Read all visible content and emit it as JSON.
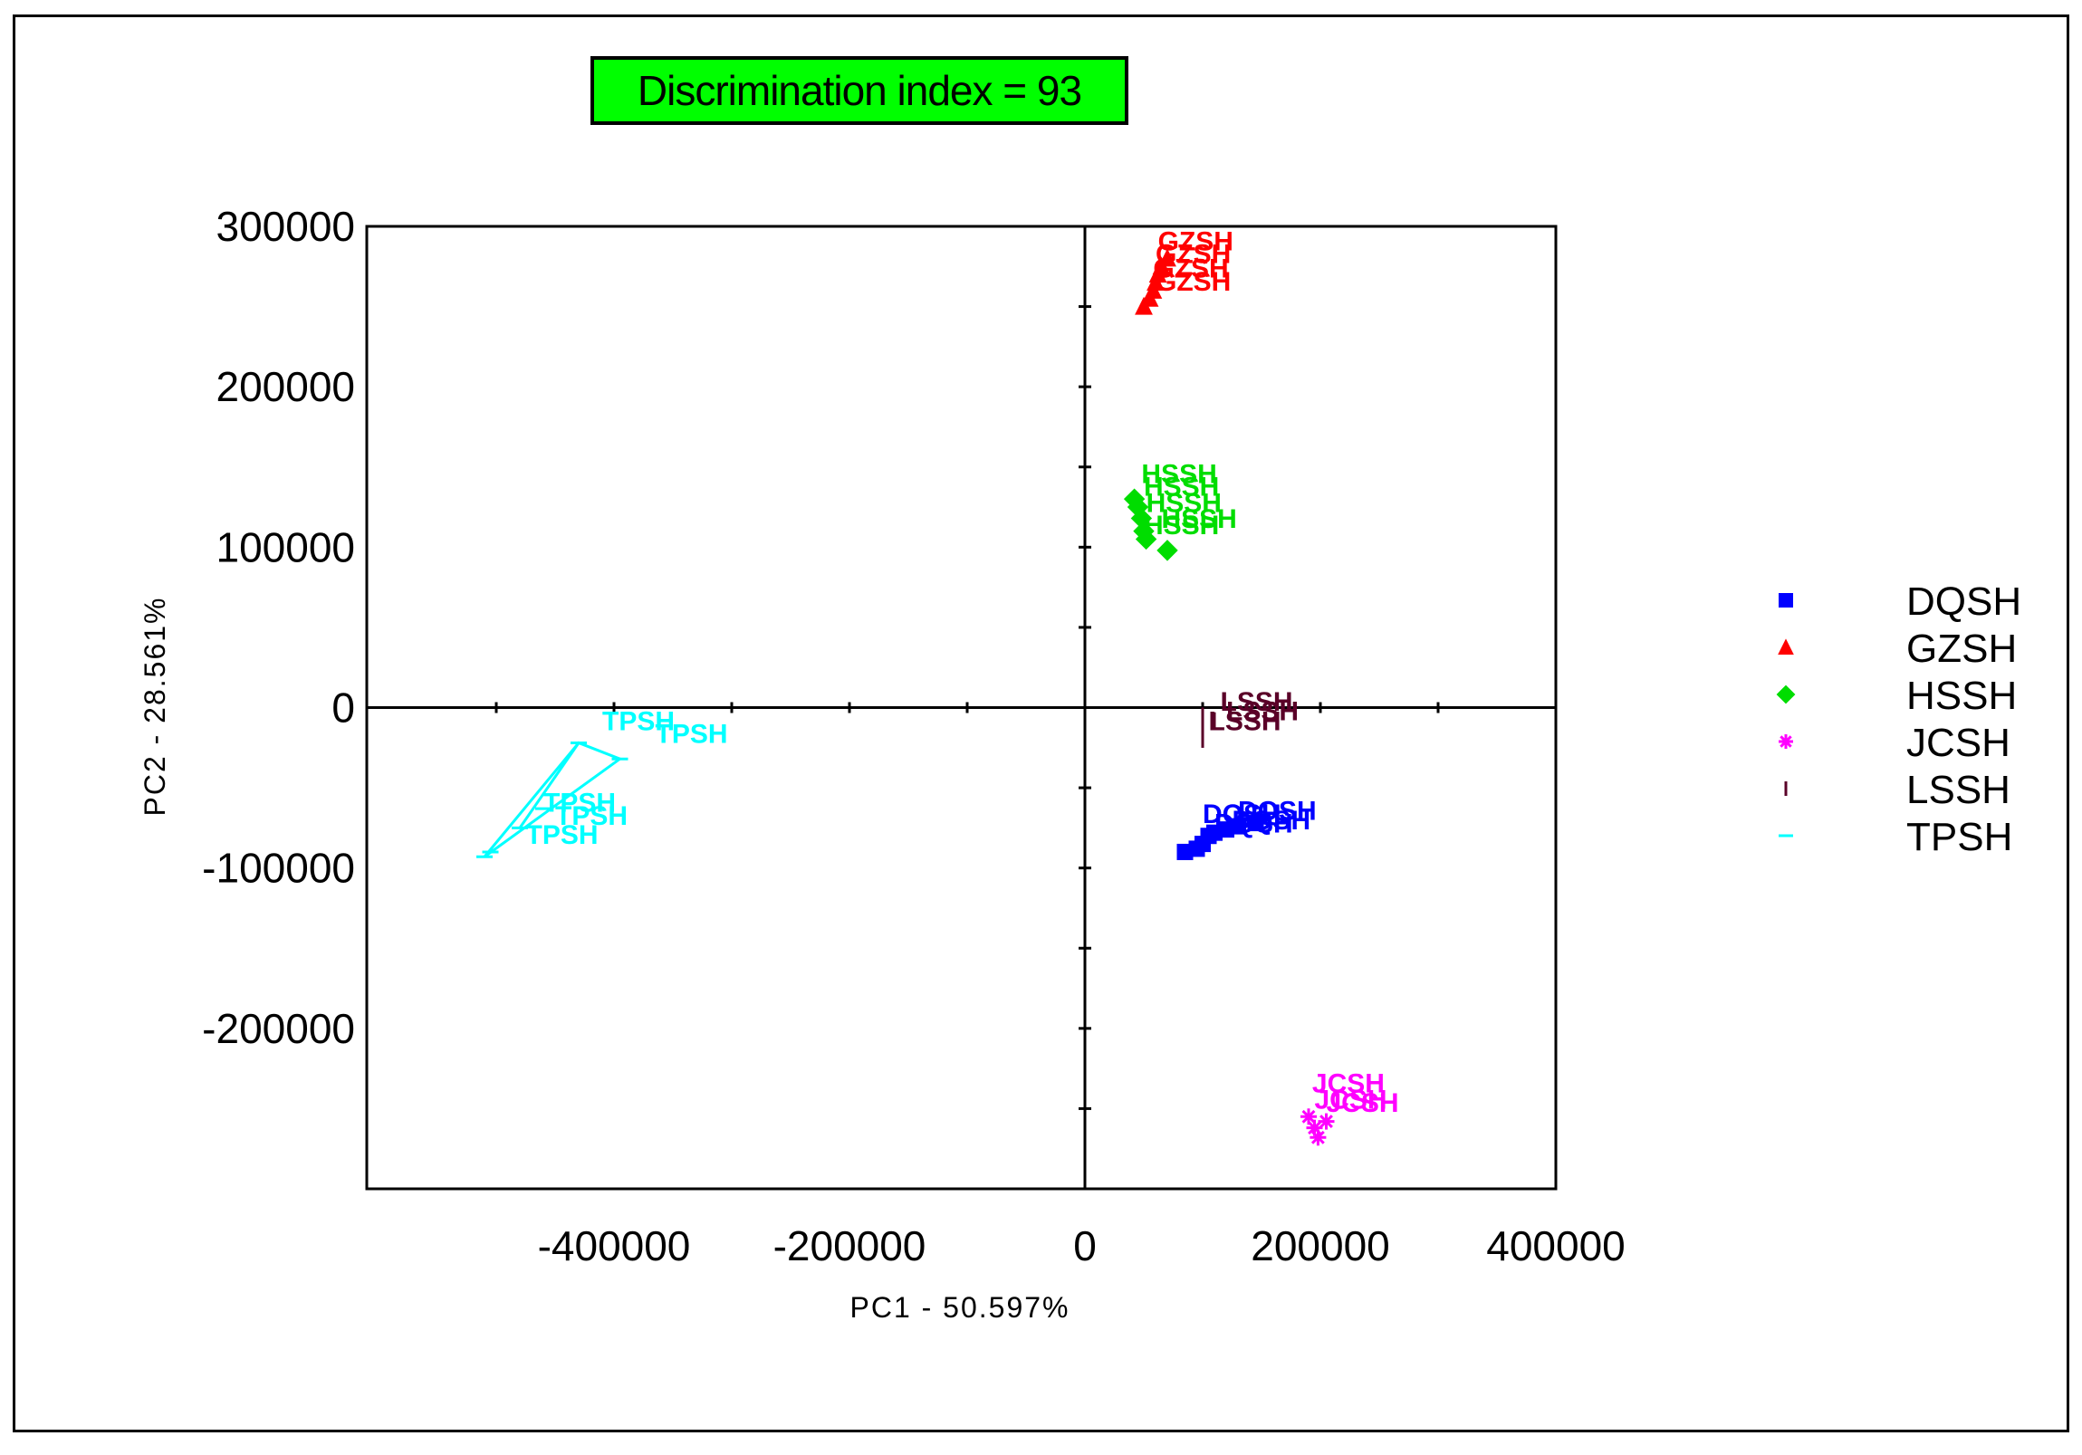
{
  "badge": {
    "text": "Discrimination index = 93",
    "color": "#00ff00"
  },
  "chart_data": {
    "type": "scatter",
    "xlabel": "PC1 - 50.597%",
    "ylabel": "PC2 - 28.561%",
    "xlim": [
      -610000,
      400000
    ],
    "ylim": [
      -300000,
      300000
    ],
    "xticks": [
      -400000,
      -200000,
      0,
      200000,
      400000
    ],
    "xtick_labels": [
      "-400000",
      "-200000",
      "0",
      "200000",
      "400000"
    ],
    "yticks": [
      300000,
      200000,
      100000,
      0,
      -100000,
      -200000
    ],
    "ytick_labels": [
      "300000",
      "200000",
      "100000",
      "0",
      "-100000",
      "-200000"
    ],
    "legend_position": "right",
    "series": [
      {
        "name": "DQSH",
        "color": "#0000ff",
        "marker": "square",
        "label": "DQSH",
        "points": [
          [
            85000,
            -90000
          ],
          [
            95000,
            -88000
          ],
          [
            100000,
            -85000
          ],
          [
            105000,
            -80000
          ],
          [
            110000,
            -78000
          ],
          [
            120000,
            -76000
          ],
          [
            130000,
            -74000
          ],
          [
            145000,
            -72000
          ]
        ],
        "text_points": [
          [
            100000,
            -72000
          ],
          [
            110000,
            -78000
          ],
          [
            125000,
            -76000
          ],
          [
            130000,
            -70000
          ]
        ]
      },
      {
        "name": "GZSH",
        "color": "#ff0000",
        "marker": "triangle",
        "label": "GZSH",
        "points": [
          [
            50000,
            250000
          ],
          [
            55000,
            255000
          ],
          [
            58000,
            260000
          ],
          [
            60000,
            265000
          ],
          [
            62000,
            270000
          ],
          [
            65000,
            275000
          ],
          [
            70000,
            280000
          ]
        ],
        "text_points": [
          [
            62000,
            285000
          ],
          [
            60000,
            277000
          ],
          [
            58000,
            268000
          ],
          [
            60000,
            260000
          ]
        ]
      },
      {
        "name": "HSSH",
        "color": "#00dd00",
        "marker": "diamond",
        "label": "HSSH",
        "points": [
          [
            42000,
            130000
          ],
          [
            45000,
            125000
          ],
          [
            48000,
            118000
          ],
          [
            50000,
            110000
          ],
          [
            52000,
            105000
          ],
          [
            70000,
            98000
          ]
        ],
        "text_points": [
          [
            48000,
            140000
          ],
          [
            50000,
            132000
          ],
          [
            52000,
            122000
          ],
          [
            65000,
            112000
          ],
          [
            50000,
            108000
          ]
        ]
      },
      {
        "name": "JCSH",
        "color": "#ff00ff",
        "marker": "star",
        "label": "JCSH",
        "points": [
          [
            190000,
            -255000
          ],
          [
            195000,
            -262000
          ],
          [
            198000,
            -268000
          ],
          [
            205000,
            -258000
          ]
        ],
        "text_points": [
          [
            193000,
            -240000
          ],
          [
            195000,
            -250000
          ],
          [
            205000,
            -252000
          ]
        ]
      },
      {
        "name": "LSSH",
        "color": "#5a0028",
        "marker": "bar",
        "label": "LSSH",
        "points": [
          [
            100000,
            -5000
          ],
          [
            100000,
            -12000
          ],
          [
            100000,
            -20000
          ],
          [
            110000,
            -8000
          ]
        ],
        "text_points": [
          [
            115000,
            -2000
          ],
          [
            120000,
            -8000
          ],
          [
            105000,
            -14000
          ]
        ]
      },
      {
        "name": "TPSH",
        "color": "#00ffff",
        "marker": "dash",
        "label": "TPSH",
        "points": [
          [
            -510000,
            -93000
          ],
          [
            -505000,
            -90000
          ],
          [
            -480000,
            -75000
          ],
          [
            -430000,
            -22000
          ],
          [
            -395000,
            -32000
          ],
          [
            -460000,
            -63000
          ]
        ],
        "text_points": [
          [
            -410000,
            -14000
          ],
          [
            -365000,
            -22000
          ],
          [
            -460000,
            -65000
          ],
          [
            -450000,
            -73000
          ],
          [
            -475000,
            -85000
          ]
        ]
      }
    ]
  }
}
